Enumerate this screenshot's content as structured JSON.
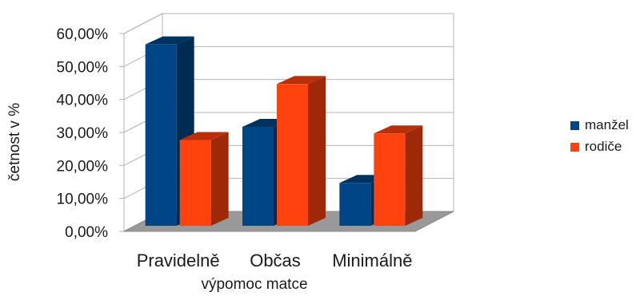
{
  "chart_data": {
    "type": "bar",
    "title": "",
    "xlabel": "výpomoc matce",
    "ylabel": "četnost v %",
    "categories": [
      "Pravidelně",
      "Občas",
      "Minimálně"
    ],
    "series": [
      {
        "name": "manžel",
        "values": [
          55.0,
          30.0,
          13.0
        ],
        "color": "#004586"
      },
      {
        "name": "rodiče",
        "values": [
          26.0,
          43.0,
          28.0
        ],
        "color": "#ff420e"
      }
    ],
    "ylim": [
      0,
      60
    ],
    "yticks": [
      0,
      10,
      20,
      30,
      40,
      50,
      60
    ],
    "ytick_labels": [
      "0,00%",
      "10,00%",
      "20,00%",
      "30,00%",
      "40,00%",
      "50,00%",
      "60,00%"
    ],
    "grid": true,
    "style": "3d",
    "legend_position": "right"
  }
}
